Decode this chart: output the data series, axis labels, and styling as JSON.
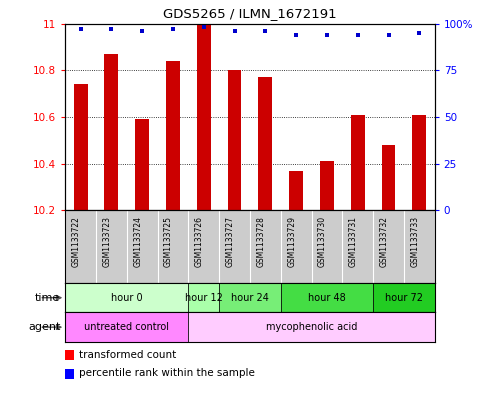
{
  "title": "GDS5265 / ILMN_1672191",
  "samples": [
    "GSM1133722",
    "GSM1133723",
    "GSM1133724",
    "GSM1133725",
    "GSM1133726",
    "GSM1133727",
    "GSM1133728",
    "GSM1133729",
    "GSM1133730",
    "GSM1133731",
    "GSM1133732",
    "GSM1133733"
  ],
  "bar_values": [
    10.74,
    10.87,
    10.59,
    10.84,
    11.0,
    10.8,
    10.77,
    10.37,
    10.41,
    10.61,
    10.48,
    10.61
  ],
  "percentile_values": [
    97,
    97,
    96,
    97,
    98,
    96,
    96,
    94,
    94,
    94,
    94,
    95
  ],
  "ymin": 10.2,
  "ymax": 11.0,
  "yticks": [
    10.2,
    10.4,
    10.6,
    10.8,
    11
  ],
  "right_yticks": [
    0,
    25,
    50,
    75,
    100
  ],
  "bar_color": "#cc0000",
  "dot_color": "#0000cc",
  "bar_bottom": 10.2,
  "time_groups": [
    {
      "label": "hour 0",
      "start": 0,
      "end": 4,
      "color": "#ccffcc"
    },
    {
      "label": "hour 12",
      "start": 4,
      "end": 5,
      "color": "#aaffaa"
    },
    {
      "label": "hour 24",
      "start": 5,
      "end": 7,
      "color": "#77ee77"
    },
    {
      "label": "hour 48",
      "start": 7,
      "end": 10,
      "color": "#44dd44"
    },
    {
      "label": "hour 72",
      "start": 10,
      "end": 12,
      "color": "#22cc22"
    }
  ],
  "agent_groups": [
    {
      "label": "untreated control",
      "start": 0,
      "end": 4,
      "color": "#ff88ff"
    },
    {
      "label": "mycophenolic acid",
      "start": 4,
      "end": 12,
      "color": "#ffccff"
    }
  ],
  "legend_bar_label": "transformed count",
  "legend_dot_label": "percentile rank within the sample",
  "sample_bg_color": "#cccccc",
  "plot_bg": "#ffffff"
}
